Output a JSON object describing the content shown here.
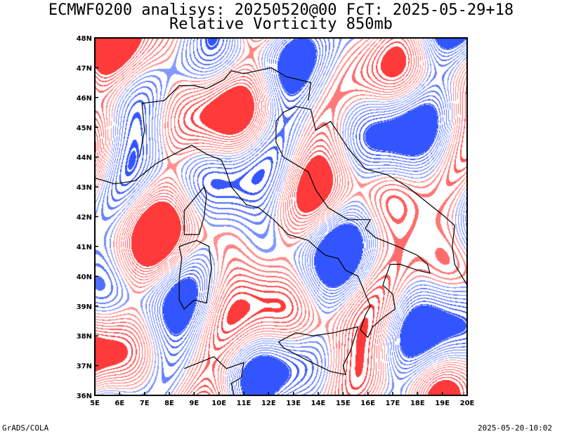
{
  "header": {
    "title_line1": "ECMWF0200 analisys: 20250520@00 FcT: 2025-05-29+18",
    "title_line2": "Relative Vorticity 850mb"
  },
  "map": {
    "region": "Italy",
    "lon_range": [
      5,
      20
    ],
    "lat_range": [
      36,
      48
    ],
    "lon_ticks": [
      "5E",
      "6E",
      "7E",
      "8E",
      "9E",
      "10E",
      "11E",
      "12E",
      "13E",
      "14E",
      "15E",
      "16E",
      "17E",
      "18E",
      "19E",
      "20E"
    ],
    "lat_ticks": [
      "36N",
      "37N",
      "38N",
      "39N",
      "40N",
      "41N",
      "42N",
      "43N",
      "44N",
      "45N",
      "46N",
      "47N",
      "48N"
    ],
    "colors": {
      "positive_vorticity": "#ff3a3a",
      "negative_vorticity": "#3355ff",
      "coastlines": "#000000",
      "frame": "#000000"
    }
  },
  "footer": {
    "left": "GrADS/COLA",
    "right": "2025-05-20-10:02"
  }
}
